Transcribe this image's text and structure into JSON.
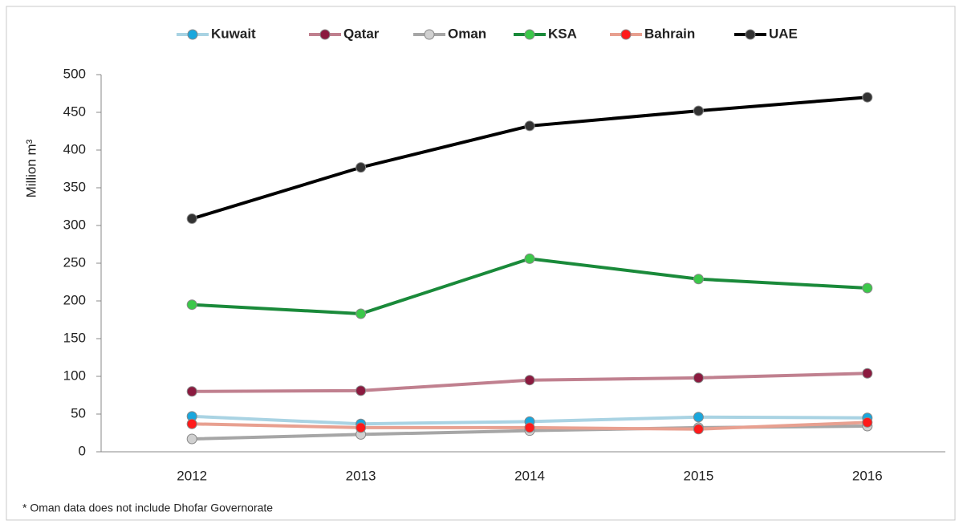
{
  "chart_data": {
    "type": "line",
    "y_label": "Million m³",
    "footnote": "* Oman data does not include Dhofar Governorate",
    "categories": [
      "2012",
      "2013",
      "2014",
      "2015",
      "2016"
    ],
    "series": [
      {
        "name": "Kuwait",
        "color": "#a9d3e3",
        "marker_color": "#1aa7dd",
        "values": [
          47,
          37,
          40,
          46,
          45
        ]
      },
      {
        "name": "Qatar",
        "color": "#c0808f",
        "marker_color": "#8b1a3f",
        "values": [
          80,
          81,
          95,
          98,
          104
        ]
      },
      {
        "name": "Oman",
        "color": "#a6a6a6",
        "marker_color": "#d0d0d0",
        "values": [
          17,
          23,
          28,
          32,
          34
        ]
      },
      {
        "name": "KSA",
        "color": "#1a8a3a",
        "marker_color": "#3cc84a",
        "values": [
          195,
          183,
          256,
          229,
          217
        ]
      },
      {
        "name": "Bahrain",
        "color": "#e8a090",
        "marker_color": "#ff1a1a",
        "values": [
          37,
          32,
          32,
          30,
          39
        ]
      },
      {
        "name": "UAE",
        "color": "#000000",
        "marker_color": "#333333",
        "values": [
          309,
          377,
          432,
          452,
          470
        ]
      }
    ],
    "ylim": [
      0,
      500
    ],
    "yticks": [
      0,
      50,
      100,
      150,
      200,
      250,
      300,
      350,
      400,
      450,
      500
    ]
  }
}
